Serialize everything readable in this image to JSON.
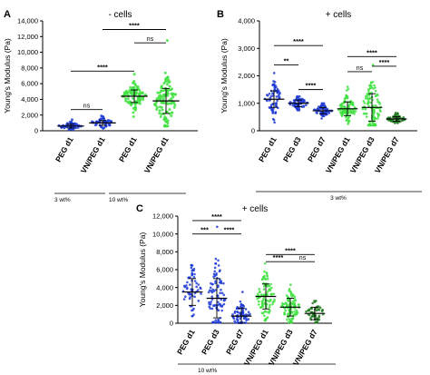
{
  "colors": {
    "peg": "#1f3bd6",
    "vn": "#3fe03f",
    "dark_green": "#1e7a1e",
    "axis": "#000000"
  },
  "chart_data": [
    {
      "panel": "A",
      "type": "scatter",
      "title": "- cells",
      "ylabel": "Young's Modulus (Pa)",
      "ylim": [
        0,
        14000
      ],
      "yticks": [
        0,
        2000,
        4000,
        6000,
        8000,
        10000,
        12000,
        14000
      ],
      "categories": [
        "PEG d1",
        "VN/PEG d1",
        "PEG d1",
        "VN/PEG d1"
      ],
      "group_labels": [
        {
          "label": "3 wt%",
          "from": 0,
          "to": 1
        },
        {
          "label": "10 wt%",
          "from": 2,
          "to": 3
        }
      ],
      "series": [
        {
          "category": "PEG d1",
          "color": "peg",
          "mean": 600,
          "sd": 250,
          "min": 150,
          "max": 1400,
          "n": 45
        },
        {
          "category": "VN/PEG d1",
          "color": "peg",
          "mean": 1000,
          "sd": 300,
          "min": 300,
          "max": 1900,
          "n": 45
        },
        {
          "category": "PEG d1",
          "color": "vn",
          "mean": 4400,
          "sd": 800,
          "min": 1800,
          "max": 7200,
          "n": 90
        },
        {
          "category": "VN/PEG d1",
          "color": "vn",
          "mean": 3800,
          "sd": 1600,
          "min": 600,
          "max": 11500,
          "n": 110
        }
      ],
      "comparisons": [
        {
          "from": 0,
          "to": 1,
          "label": "ns",
          "y": 2700
        },
        {
          "from": 0,
          "to": 2,
          "label": "****",
          "y": 7600
        },
        {
          "from": 2,
          "to": 3,
          "label": "ns",
          "y": 11200
        },
        {
          "from": 1,
          "to": 3,
          "label": "****",
          "y": 12900
        }
      ]
    },
    {
      "panel": "B",
      "type": "scatter",
      "title": "+ cells",
      "ylabel": "Young's Modulus (Pa)",
      "ylim": [
        0,
        4000
      ],
      "yticks": [
        0,
        1000,
        2000,
        3000,
        4000
      ],
      "categories": [
        "PEG d1",
        "PEG d3",
        "PEG d7",
        "VN/PEG d1",
        "VN/PEG d3",
        "VN/PEG d7"
      ],
      "group_labels": [
        {
          "label": "3 wt%",
          "from": 0,
          "to": 5
        }
      ],
      "series": [
        {
          "category": "PEG d1",
          "color": "peg",
          "mean": 1150,
          "sd": 300,
          "min": 300,
          "max": 2100,
          "n": 70
        },
        {
          "category": "PEG d3",
          "color": "peg",
          "mean": 1000,
          "sd": 120,
          "min": 750,
          "max": 1250,
          "n": 70
        },
        {
          "category": "PEG d7",
          "color": "peg",
          "mean": 730,
          "sd": 120,
          "min": 450,
          "max": 1000,
          "n": 70
        },
        {
          "category": "VN/PEG d1",
          "color": "vn",
          "mean": 800,
          "sd": 250,
          "min": 250,
          "max": 1600,
          "n": 100
        },
        {
          "category": "VN/PEG d3",
          "color": "vn",
          "mean": 850,
          "sd": 500,
          "min": 200,
          "max": 2400,
          "n": 110
        },
        {
          "category": "VN/PEG d7",
          "color": "dark_green",
          "mean": 430,
          "sd": 80,
          "min": 280,
          "max": 650,
          "n": 70
        }
      ],
      "comparisons": [
        {
          "from": 0,
          "to": 1,
          "label": "**",
          "y": 2400
        },
        {
          "from": 0,
          "to": 2,
          "label": "****",
          "y": 3100
        },
        {
          "from": 1,
          "to": 2,
          "label": "****",
          "y": 1500
        },
        {
          "from": 3,
          "to": 4,
          "label": "ns",
          "y": 2150
        },
        {
          "from": 3,
          "to": 5,
          "label": "****",
          "y": 2700
        },
        {
          "from": 4,
          "to": 5,
          "label": "****",
          "y": 2350
        }
      ]
    },
    {
      "panel": "C",
      "type": "scatter",
      "title": "+ cells",
      "ylabel": "Young's Modulus (Pa)",
      "ylim": [
        0,
        12000
      ],
      "yticks": [
        0,
        2000,
        4000,
        6000,
        8000,
        10000,
        12000
      ],
      "categories": [
        "PEG d1",
        "PEG d3",
        "PEG d7",
        "VN/PEG d1",
        "VN/PEG d3",
        "VN/PEG d7"
      ],
      "group_labels": [
        {
          "label": "10 wt%",
          "from": 0,
          "to": 5
        }
      ],
      "series": [
        {
          "category": "PEG d1",
          "color": "peg",
          "mean": 3500,
          "sd": 1500,
          "min": 800,
          "max": 6500,
          "n": 60
        },
        {
          "category": "PEG d3",
          "color": "peg",
          "mean": 2800,
          "sd": 2200,
          "min": 100,
          "max": 10800,
          "n": 90
        },
        {
          "category": "PEG d7",
          "color": "peg",
          "mean": 800,
          "sd": 900,
          "min": 50,
          "max": 3500,
          "n": 70
        },
        {
          "category": "VN/PEG d1",
          "color": "vn",
          "mean": 3000,
          "sd": 1400,
          "min": 300,
          "max": 6700,
          "n": 100
        },
        {
          "category": "VN/PEG d3",
          "color": "vn",
          "mean": 1800,
          "sd": 1000,
          "min": 100,
          "max": 4300,
          "n": 100
        },
        {
          "category": "VN/PEG d7",
          "color": "dark_green",
          "mean": 1100,
          "sd": 700,
          "min": 100,
          "max": 2500,
          "n": 55
        }
      ],
      "comparisons": [
        {
          "from": 0,
          "to": 1,
          "label": "***",
          "y": 10000
        },
        {
          "from": 0,
          "to": 2,
          "label": "****",
          "y": 11500
        },
        {
          "from": 1,
          "to": 2,
          "label": "****",
          "y": 10000
        },
        {
          "from": 3,
          "to": 4,
          "label": "****",
          "y": 6900
        },
        {
          "from": 3,
          "to": 5,
          "label": "****",
          "y": 7700
        },
        {
          "from": 4,
          "to": 5,
          "label": "ns",
          "y": 6900
        }
      ]
    }
  ]
}
